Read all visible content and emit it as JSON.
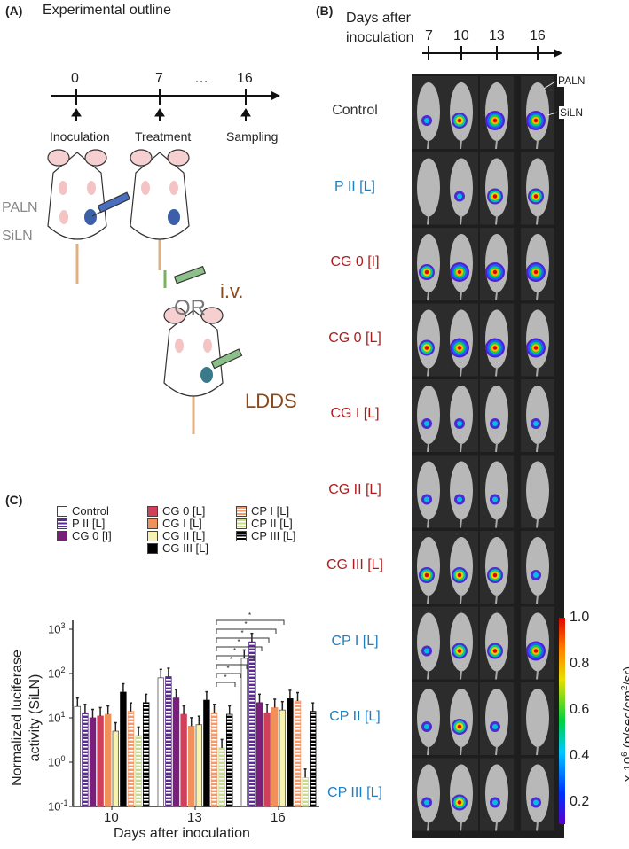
{
  "panel_a": {
    "label": "(A)",
    "title": "Experimental outline",
    "timeline_ticks": [
      "0",
      "7",
      "16"
    ],
    "ellipsis": "…",
    "events": [
      "Inoculation",
      "Treatment",
      "Sampling"
    ],
    "node_labels": [
      "PALN",
      "SiLN"
    ],
    "route_iv": "i.v.",
    "or_text": "OR",
    "route_ldds": "LDDS"
  },
  "panel_b": {
    "label": "(B)",
    "axis_title_line1": "Days after",
    "axis_title_line2": "inoculation",
    "days": [
      "7",
      "10",
      "13",
      "16"
    ],
    "annotations": [
      "PALN",
      "SiLN"
    ],
    "rows": [
      {
        "name": "Control",
        "color": "#333333",
        "signal": [
          1,
          2,
          3,
          3
        ]
      },
      {
        "name": "P II [L]",
        "color": "#1f7fc0",
        "signal": [
          0,
          1,
          2,
          2
        ]
      },
      {
        "name": "CG 0 [I]",
        "color": "#b01c1c",
        "signal": [
          2,
          3,
          3,
          3
        ]
      },
      {
        "name": "CG 0 [L]",
        "color": "#b01c1c",
        "signal": [
          2,
          3,
          3,
          3
        ]
      },
      {
        "name": "CG I [L]",
        "color": "#b01c1c",
        "signal": [
          1,
          1,
          1,
          1
        ]
      },
      {
        "name": "CG II [L]",
        "color": "#b01c1c",
        "signal": [
          1,
          1,
          1,
          0
        ]
      },
      {
        "name": "CG III [L]",
        "color": "#b01c1c",
        "signal": [
          2,
          2,
          2,
          1
        ]
      },
      {
        "name": "CP I [L]",
        "color": "#1f7fc0",
        "signal": [
          1,
          2,
          2,
          3
        ]
      },
      {
        "name": "CP II [L]",
        "color": "#1f7fc0",
        "signal": [
          1,
          2,
          1,
          0
        ]
      },
      {
        "name": "CP III [L]",
        "color": "#1f7fc0",
        "signal": [
          1,
          2,
          1,
          1
        ]
      }
    ],
    "colorbar": {
      "ticks": [
        "1.0",
        "0.8",
        "0.6",
        "0.4",
        "0.2"
      ],
      "unit_prefix": "x 10",
      "unit_exp": "6",
      "unit_rest": " (p/sec/cm",
      "unit_exp2": "2",
      "unit_end": "/sr)"
    }
  },
  "chart_data": {
    "panel_label": "(C)",
    "type": "bar",
    "title": "",
    "xlabel": "Days after inoculation",
    "ylabel_line1": "Normalized luciferase",
    "ylabel_line2": "activity (SiLN)",
    "yscale": "log",
    "ylim": [
      0.1,
      1000
    ],
    "ytick_base": "10",
    "ytick_exps": [
      "-1",
      "0",
      "1",
      "2",
      "3"
    ],
    "categories": [
      "10",
      "13",
      "16"
    ],
    "significance_marker": "*",
    "legend_placement": "top",
    "series": [
      {
        "name": "Control",
        "color": "#ffffff",
        "pattern": "solid",
        "values": [
          18,
          80,
          220
        ]
      },
      {
        "name": "P II [L]",
        "color": "#5b2c91",
        "pattern": "striped",
        "values": [
          13,
          85,
          520
        ]
      },
      {
        "name": "CG 0 [I]",
        "color": "#7b1f7c",
        "pattern": "solid",
        "values": [
          10,
          28,
          22
        ]
      },
      {
        "name": "CG 0 [L]",
        "color": "#d0405a",
        "pattern": "solid",
        "values": [
          11,
          12,
          13
        ]
      },
      {
        "name": "CG I [L]",
        "color": "#f0915a",
        "pattern": "solid",
        "values": [
          12,
          6.5,
          17
        ]
      },
      {
        "name": "CG II [L]",
        "color": "#f8f2b0",
        "pattern": "solid",
        "values": [
          5,
          7,
          15
        ]
      },
      {
        "name": "CG III [L]",
        "color": "#000000",
        "pattern": "solid",
        "values": [
          38,
          25,
          27
        ]
      },
      {
        "name": "CP I [L]",
        "color": "#f59a6a",
        "pattern": "striped",
        "values": [
          14,
          13,
          24
        ]
      },
      {
        "name": "CP II [L]",
        "color": "#c9dc8a",
        "pattern": "striped",
        "values": [
          4,
          2.1,
          0.45
        ]
      },
      {
        "name": "CP III [L]",
        "color": "#000000",
        "pattern": "striped",
        "values": [
          22,
          12,
          14
        ]
      }
    ]
  }
}
